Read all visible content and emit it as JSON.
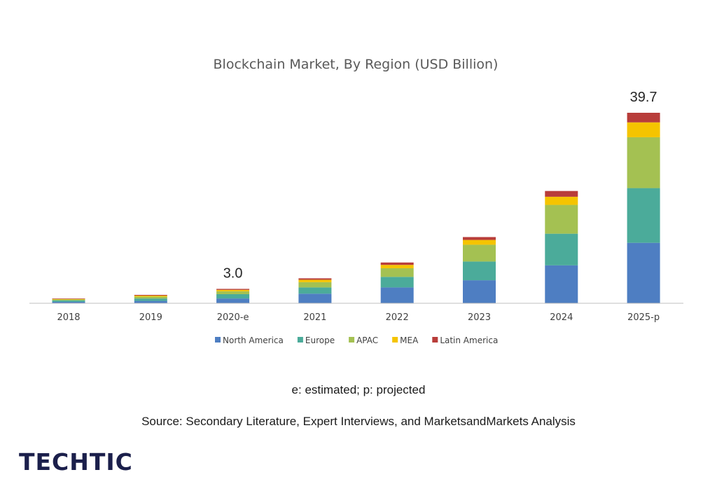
{
  "chart_data": {
    "type": "bar",
    "stacked": true,
    "title": "Blockchain Market, By Region (USD Billion)",
    "xlabel": "",
    "ylabel": "",
    "ylim": [
      0,
      39.7
    ],
    "grid": false,
    "legend_position": "bottom",
    "categories": [
      "2018",
      "2019",
      "2020-e",
      "2021",
      "2022",
      "2023",
      "2024",
      "2025-p"
    ],
    "series": [
      {
        "name": "North America",
        "color": "#4e7ec2",
        "values": [
          0.3,
          0.5,
          1.0,
          2.0,
          3.3,
          4.8,
          7.9,
          12.6
        ]
      },
      {
        "name": "Europe",
        "color": "#4bab9a",
        "values": [
          0.3,
          0.5,
          0.9,
          1.3,
          2.2,
          3.9,
          6.6,
          11.4
        ]
      },
      {
        "name": "APAC",
        "color": "#a4c152",
        "values": [
          0.2,
          0.4,
          0.6,
          1.1,
          1.8,
          3.5,
          6.0,
          10.6
        ]
      },
      {
        "name": "MEA",
        "color": "#f5c400",
        "values": [
          0.1,
          0.2,
          0.3,
          0.5,
          0.7,
          1.0,
          1.7,
          3.1
        ]
      },
      {
        "name": "Latin America",
        "color": "#b83d3a",
        "values": [
          0.1,
          0.15,
          0.2,
          0.3,
          0.5,
          0.6,
          1.2,
          2.0
        ]
      }
    ],
    "data_labels": [
      {
        "category": "2020-e",
        "text": "3.0"
      },
      {
        "category": "2025-p",
        "text": "39.7"
      }
    ]
  },
  "notes": {
    "estimated_projected": "e: estimated; p: projected",
    "source": "Source: Secondary Literature, Expert Interviews, and MarketsandMarkets Analysis"
  },
  "logo": {
    "text": "TECHTIC",
    "color": "#1b1f4b"
  }
}
